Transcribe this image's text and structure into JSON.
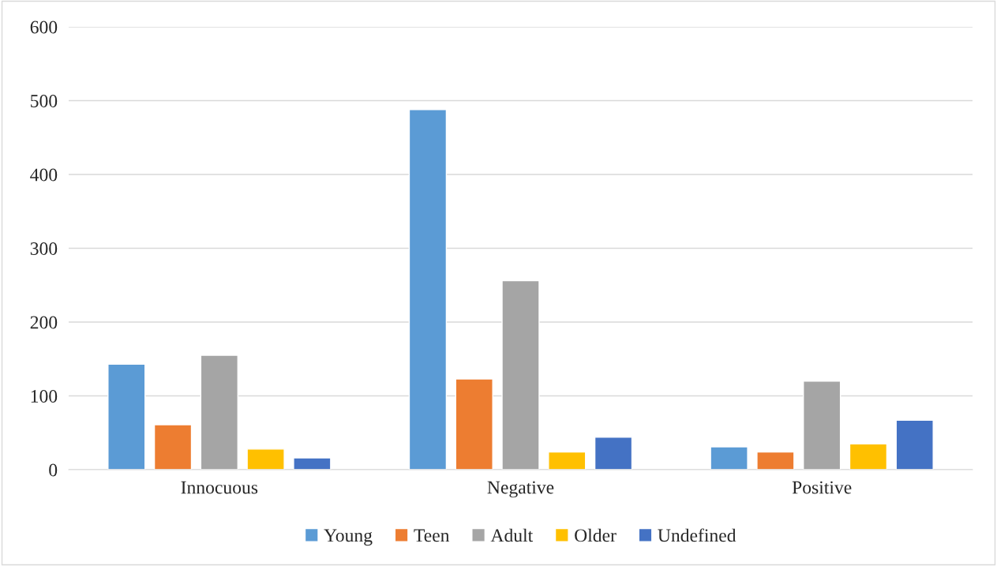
{
  "chart_data": {
    "type": "bar",
    "categories": [
      "Innocuous",
      "Negative",
      "Positive"
    ],
    "series": [
      {
        "name": "Young",
        "color": "#5b9bd5",
        "values": [
          143,
          488,
          31
        ]
      },
      {
        "name": "Teen",
        "color": "#ed7d31",
        "values": [
          61,
          123,
          24
        ]
      },
      {
        "name": "Adult",
        "color": "#a5a5a5",
        "values": [
          155,
          256,
          120
        ]
      },
      {
        "name": "Older",
        "color": "#ffc000",
        "values": [
          28,
          24,
          35
        ]
      },
      {
        "name": "Undefined",
        "color": "#4472c4",
        "values": [
          16,
          44,
          67
        ]
      }
    ],
    "ylim": [
      0,
      600
    ],
    "yticks": [
      0,
      100,
      200,
      300,
      400,
      500,
      600
    ],
    "grid": "y",
    "legend": "bottom"
  }
}
